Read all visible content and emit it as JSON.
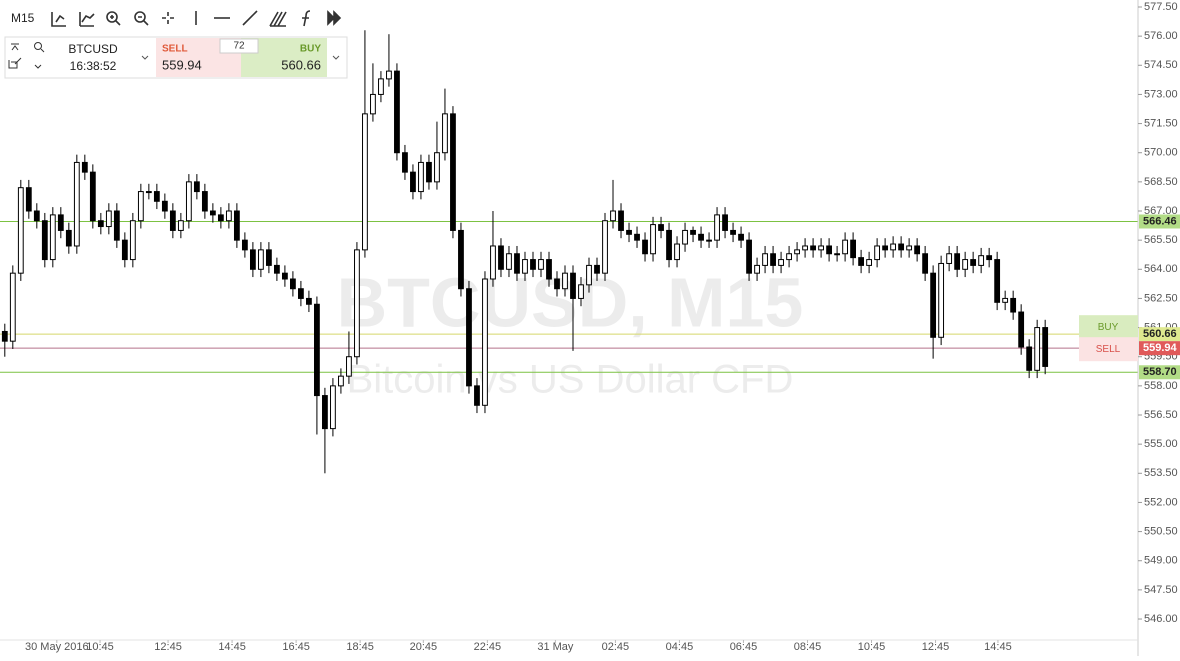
{
  "toolbar": {
    "timeframe": "M15"
  },
  "quote": {
    "symbol": "BTCUSD",
    "time": "16:38:52",
    "sell_label": "SELL",
    "sell": 559.94,
    "spread": 72,
    "buy_label": "BUY",
    "buy": 560.66
  },
  "chart_data": {
    "type": "candlestick",
    "title": "BTCUSD, M15",
    "subtitle": "Bitcoin vs US Dollar CFD",
    "up_color": "#ffffff",
    "down_color": "#000000",
    "wick_color": "#000000",
    "open": [
      560.8,
      560.3,
      563.8,
      568.2,
      567.0,
      566.5,
      564.5,
      566.8,
      566.0,
      565.2,
      569.5,
      569.0,
      566.5,
      566.2,
      567.0,
      565.5,
      564.5,
      566.5,
      568.0,
      568.0,
      567.5,
      567.0,
      566.0,
      566.5,
      568.5,
      568.0,
      567.0,
      566.8,
      566.5,
      567.0,
      565.5,
      565.0,
      564.0,
      565.0,
      564.2,
      563.8,
      563.5,
      563.0,
      562.5,
      562.2,
      557.5,
      555.8,
      558.0,
      558.5,
      559.5,
      565.0,
      572.0,
      573.0,
      573.8,
      574.2,
      570.0,
      569.0,
      568.0,
      569.5,
      568.5,
      570.0,
      572.0,
      566.0,
      563.0,
      558.0,
      557.0,
      563.5,
      565.2,
      564.0,
      564.8,
      563.8,
      564.5,
      564.0,
      564.5,
      563.5,
      563.0,
      563.8,
      562.5,
      563.2,
      564.2,
      563.8,
      566.5,
      567.0,
      566.0,
      565.8,
      565.5,
      564.8,
      566.3,
      566.0,
      564.5,
      565.3,
      566.0,
      565.8,
      565.5,
      565.5,
      566.8,
      566.0,
      565.8,
      565.5,
      563.8,
      564.2,
      564.8,
      564.2,
      564.5,
      564.8,
      565.0,
      565.2,
      565.0,
      565.2,
      564.8,
      564.8,
      565.5,
      564.6,
      564.2,
      564.5,
      565.2,
      565.0,
      565.3,
      565.0,
      565.2,
      564.8,
      563.8,
      560.5,
      564.3,
      564.8,
      564.0,
      564.5,
      564.2,
      564.7,
      564.5,
      562.3,
      562.5,
      561.8,
      560.0,
      558.8,
      561.0
    ],
    "high": [
      561.2,
      564.2,
      568.6,
      568.6,
      567.4,
      566.9,
      567.2,
      567.2,
      566.4,
      569.9,
      569.9,
      569.4,
      566.9,
      567.4,
      567.4,
      565.9,
      566.9,
      568.4,
      568.4,
      568.4,
      567.9,
      567.4,
      566.9,
      568.9,
      568.9,
      568.4,
      567.4,
      567.2,
      567.4,
      567.4,
      565.9,
      565.4,
      565.4,
      565.4,
      564.6,
      564.2,
      563.9,
      563.4,
      562.9,
      562.6,
      557.9,
      558.4,
      558.9,
      560.8,
      565.4,
      576.3,
      574.6,
      574.2,
      576.1,
      574.6,
      570.4,
      569.4,
      569.9,
      569.9,
      571.6,
      573.3,
      572.4,
      566.4,
      563.4,
      558.4,
      563.9,
      567.0,
      565.6,
      565.2,
      565.2,
      564.9,
      564.9,
      564.9,
      564.9,
      563.9,
      564.2,
      564.2,
      563.6,
      564.6,
      564.6,
      566.9,
      568.6,
      567.4,
      566.4,
      566.2,
      565.9,
      566.7,
      566.7,
      566.4,
      565.7,
      566.4,
      566.2,
      566.2,
      565.9,
      567.2,
      567.2,
      566.4,
      566.2,
      565.9,
      564.6,
      565.2,
      565.2,
      564.9,
      565.2,
      565.4,
      565.6,
      565.6,
      565.6,
      565.6,
      565.2,
      565.9,
      565.9,
      565.0,
      564.9,
      565.6,
      565.6,
      565.7,
      565.7,
      565.6,
      565.6,
      565.2,
      564.2,
      564.7,
      565.2,
      565.2,
      564.9,
      564.9,
      565.1,
      565.1,
      564.9,
      562.9,
      562.9,
      562.2,
      560.4,
      561.4,
      561.4
    ],
    "low": [
      559.5,
      559.9,
      563.4,
      566.6,
      566.1,
      564.1,
      564.1,
      565.6,
      564.8,
      564.8,
      568.6,
      566.1,
      565.8,
      565.8,
      565.1,
      564.1,
      564.1,
      566.1,
      567.6,
      567.1,
      566.6,
      565.6,
      565.6,
      566.1,
      567.6,
      566.6,
      566.4,
      566.1,
      566.1,
      565.1,
      564.6,
      563.6,
      563.6,
      563.8,
      563.4,
      563.1,
      562.6,
      562.1,
      561.8,
      555.5,
      553.5,
      555.4,
      557.6,
      558.1,
      559.1,
      564.6,
      571.6,
      572.6,
      573.4,
      569.6,
      568.6,
      567.6,
      567.6,
      568.1,
      568.1,
      569.6,
      565.6,
      562.6,
      557.6,
      556.6,
      556.6,
      563.1,
      563.6,
      563.6,
      563.4,
      563.4,
      563.6,
      563.6,
      563.1,
      562.6,
      562.6,
      559.8,
      562.1,
      562.8,
      563.4,
      563.4,
      566.1,
      565.6,
      565.4,
      565.1,
      564.4,
      564.4,
      565.6,
      564.1,
      564.1,
      564.9,
      565.4,
      565.1,
      565.1,
      565.1,
      565.6,
      565.4,
      565.1,
      563.4,
      563.4,
      563.8,
      563.8,
      563.8,
      564.1,
      564.4,
      564.6,
      564.6,
      564.6,
      564.4,
      564.4,
      564.4,
      564.2,
      563.8,
      563.8,
      564.1,
      564.6,
      564.6,
      564.6,
      564.6,
      564.4,
      563.4,
      559.4,
      560.1,
      563.9,
      563.6,
      563.6,
      563.8,
      563.8,
      564.1,
      561.9,
      561.9,
      561.4,
      559.6,
      558.4,
      558.4,
      558.6
    ],
    "close": [
      560.3,
      563.8,
      568.2,
      567.0,
      566.5,
      564.5,
      566.8,
      566.0,
      565.2,
      569.5,
      569.0,
      566.5,
      566.2,
      567.0,
      565.5,
      564.5,
      566.5,
      568.0,
      568.0,
      567.5,
      567.0,
      566.0,
      566.5,
      568.5,
      568.0,
      567.0,
      566.8,
      566.5,
      567.0,
      565.5,
      565.0,
      564.0,
      565.0,
      564.2,
      563.8,
      563.5,
      563.0,
      562.5,
      562.2,
      557.5,
      555.8,
      558.0,
      558.5,
      559.5,
      565.0,
      572.0,
      573.0,
      573.8,
      574.2,
      570.0,
      569.0,
      568.0,
      569.5,
      568.5,
      570.0,
      572.0,
      566.0,
      563.0,
      558.0,
      557.0,
      563.5,
      565.2,
      564.0,
      564.8,
      563.8,
      564.5,
      564.0,
      564.5,
      563.5,
      563.0,
      563.8,
      562.5,
      563.2,
      564.2,
      563.8,
      566.5,
      567.0,
      566.0,
      565.8,
      565.5,
      564.8,
      566.3,
      566.0,
      564.5,
      565.3,
      566.0,
      565.8,
      565.5,
      565.5,
      566.8,
      566.0,
      565.8,
      565.5,
      563.8,
      564.2,
      564.8,
      564.2,
      564.5,
      564.8,
      565.0,
      565.2,
      565.0,
      565.2,
      564.8,
      564.8,
      565.5,
      564.6,
      564.2,
      564.5,
      565.2,
      565.0,
      565.3,
      565.0,
      565.2,
      564.8,
      563.8,
      560.5,
      564.3,
      564.8,
      564.0,
      564.5,
      564.2,
      564.7,
      564.5,
      562.3,
      562.5,
      561.8,
      560.0,
      558.8,
      561.0,
      559.0
    ],
    "xlim": [
      -0.6,
      141.6
    ],
    "xticks": [
      {
        "value": 6.5,
        "label": "30 May 2016"
      },
      {
        "value": 11.9,
        "label": "10:45"
      },
      {
        "value": 20.4,
        "label": "12:45"
      },
      {
        "value": 28.4,
        "label": "14:45"
      },
      {
        "value": 36.4,
        "label": "16:45"
      },
      {
        "value": 44.4,
        "label": "18:45"
      },
      {
        "value": 52.3,
        "label": "20:45"
      },
      {
        "value": 60.3,
        "label": "22:45"
      },
      {
        "value": 68.8,
        "label": "31 May"
      },
      {
        "value": 76.3,
        "label": "02:45"
      },
      {
        "value": 84.3,
        "label": "04:45"
      },
      {
        "value": 92.3,
        "label": "06:45"
      },
      {
        "value": 100.3,
        "label": "08:45"
      },
      {
        "value": 108.3,
        "label": "10:45"
      },
      {
        "value": 116.3,
        "label": "12:45"
      },
      {
        "value": 124.1,
        "label": "14:45"
      }
    ],
    "ylim": [
      544.92,
      577.86
    ],
    "yticks": [
      {
        "value": 546,
        "label": "546.00"
      },
      {
        "value": 547.5,
        "label": "547.50"
      },
      {
        "value": 549,
        "label": "549.00"
      },
      {
        "value": 550.5,
        "label": "550.50"
      },
      {
        "value": 552,
        "label": "552.00"
      },
      {
        "value": 553.5,
        "label": "553.50"
      },
      {
        "value": 555,
        "label": "555.00"
      },
      {
        "value": 556.5,
        "label": "556.50"
      },
      {
        "value": 558,
        "label": "558.00"
      },
      {
        "value": 559.5,
        "label": "559.50"
      },
      {
        "value": 561,
        "label": "561.00"
      },
      {
        "value": 562.5,
        "label": "562.50"
      },
      {
        "value": 564,
        "label": "564.00"
      },
      {
        "value": 565.5,
        "label": "565.50"
      },
      {
        "value": 567,
        "label": "567.00"
      },
      {
        "value": 568.5,
        "label": "568.50"
      },
      {
        "value": 570,
        "label": "570.00"
      },
      {
        "value": 571.5,
        "label": "571.50"
      },
      {
        "value": 573,
        "label": "573.00"
      },
      {
        "value": 574.5,
        "label": "574.50"
      },
      {
        "value": 576,
        "label": "576.00"
      },
      {
        "value": 577.5,
        "label": "577.50"
      }
    ],
    "grid": false,
    "price_lines": {
      "values": [
        566.46,
        560.66,
        559.94,
        558.7
      ],
      "value_labels": [
        "566.46",
        "560.66",
        "559.94",
        "558.70"
      ],
      "colors": [
        "#7cc242",
        "#d5d86a",
        "#b5708a",
        "#7cc242"
      ],
      "label_colors": [
        "#b2dc86",
        "#dfe98f",
        "#e05a5a",
        "#b2dc86"
      ]
    }
  }
}
